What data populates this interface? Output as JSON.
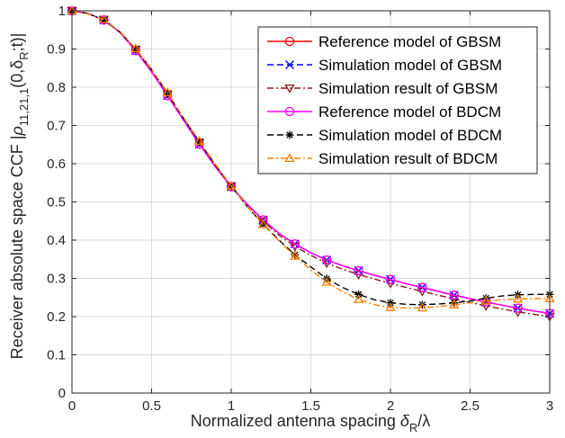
{
  "chart_data": {
    "type": "line",
    "xlabel": "Normalized antenna spacing δR/λ",
    "xlabel_main": "Normalized antenna spacing ",
    "xlabel_symbol": "δ",
    "xlabel_sub": "R",
    "xlabel_tail": "/λ",
    "ylabel": "Receiver absolute space CCF |ρ11,21,1(0,δR;t)|",
    "ylabel_main": "Receiver absolute space CCF |",
    "ylabel_rho": "ρ",
    "ylabel_sub1": "11,21,1",
    "ylabel_args": "(0,δ",
    "ylabel_sub2": "R",
    "ylabel_tail": ";t)|",
    "xlim": [
      0,
      3
    ],
    "ylim": [
      0,
      1
    ],
    "xticks": [
      "0",
      "0.5",
      "1",
      "1.5",
      "2",
      "2.5",
      "3"
    ],
    "yticks": [
      "0",
      "0.1",
      "0.2",
      "0.3",
      "0.4",
      "0.5",
      "0.6",
      "0.7",
      "0.8",
      "0.9",
      "1"
    ],
    "grid": true,
    "legend_position": "top-right",
    "x": [
      0,
      0.1,
      0.2,
      0.3,
      0.4,
      0.5,
      0.6,
      0.7,
      0.8,
      0.9,
      1.0,
      1.1,
      1.2,
      1.3,
      1.4,
      1.5,
      1.6,
      1.7,
      1.8,
      1.9,
      2.0,
      2.1,
      2.2,
      2.3,
      2.4,
      2.5,
      2.6,
      2.7,
      2.8,
      2.9,
      3.0
    ],
    "series": [
      {
        "name": "Reference model of GBSM",
        "color": "#ff0000",
        "dash": "",
        "marker": "circle",
        "values": [
          1.0,
          0.993,
          0.976,
          0.944,
          0.896,
          0.84,
          0.778,
          0.714,
          0.651,
          0.592,
          0.54,
          0.494,
          0.453,
          0.418,
          0.39,
          0.367,
          0.348,
          0.333,
          0.32,
          0.308,
          0.297,
          0.286,
          0.276,
          0.266,
          0.256,
          0.247,
          0.238,
          0.23,
          0.222,
          0.215,
          0.208
        ]
      },
      {
        "name": "Simulation model of GBSM",
        "color": "#0000ff",
        "dash": "7,4",
        "marker": "x",
        "values": [
          1.0,
          0.993,
          0.976,
          0.944,
          0.896,
          0.84,
          0.778,
          0.714,
          0.651,
          0.592,
          0.54,
          0.494,
          0.453,
          0.418,
          0.39,
          0.367,
          0.348,
          0.333,
          0.32,
          0.308,
          0.297,
          0.286,
          0.276,
          0.266,
          0.256,
          0.247,
          0.238,
          0.23,
          0.222,
          0.215,
          0.208
        ]
      },
      {
        "name": "Simulation result of GBSM",
        "color": "#8b1a1a",
        "dash": "7,3,2,3",
        "marker": "triangle-down",
        "values": [
          1.0,
          0.992,
          0.977,
          0.946,
          0.899,
          0.843,
          0.782,
          0.718,
          0.656,
          0.597,
          0.542,
          0.493,
          0.45,
          0.413,
          0.384,
          0.36,
          0.34,
          0.324,
          0.31,
          0.298,
          0.287,
          0.276,
          0.266,
          0.256,
          0.246,
          0.237,
          0.228,
          0.22,
          0.212,
          0.206,
          0.2
        ]
      },
      {
        "name": "Reference model of BDCM",
        "color": "#ff00ff",
        "dash": "",
        "marker": "circle",
        "values": [
          1.0,
          0.993,
          0.976,
          0.944,
          0.896,
          0.84,
          0.778,
          0.714,
          0.651,
          0.592,
          0.54,
          0.494,
          0.453,
          0.418,
          0.39,
          0.367,
          0.348,
          0.333,
          0.32,
          0.308,
          0.297,
          0.286,
          0.276,
          0.266,
          0.256,
          0.247,
          0.238,
          0.23,
          0.222,
          0.215,
          0.208
        ]
      },
      {
        "name": "Simulation model of BDCM",
        "color": "#000000",
        "dash": "7,4",
        "marker": "asterisk",
        "values": [
          1.0,
          0.993,
          0.976,
          0.945,
          0.9,
          0.846,
          0.784,
          0.719,
          0.657,
          0.597,
          0.541,
          0.488,
          0.442,
          0.4,
          0.362,
          0.33,
          0.299,
          0.276,
          0.258,
          0.244,
          0.236,
          0.232,
          0.231,
          0.233,
          0.236,
          0.241,
          0.248,
          0.254,
          0.257,
          0.258,
          0.258
        ]
      },
      {
        "name": "Simulation result of BDCM",
        "color": "#ff7f00",
        "dash": "7,3,2,3",
        "marker": "triangle-up",
        "values": [
          1.0,
          0.992,
          0.977,
          0.946,
          0.901,
          0.847,
          0.786,
          0.721,
          0.659,
          0.599,
          0.542,
          0.489,
          0.441,
          0.398,
          0.358,
          0.322,
          0.29,
          0.265,
          0.245,
          0.231,
          0.224,
          0.222,
          0.223,
          0.226,
          0.231,
          0.236,
          0.241,
          0.244,
          0.246,
          0.247,
          0.247
        ]
      }
    ]
  }
}
